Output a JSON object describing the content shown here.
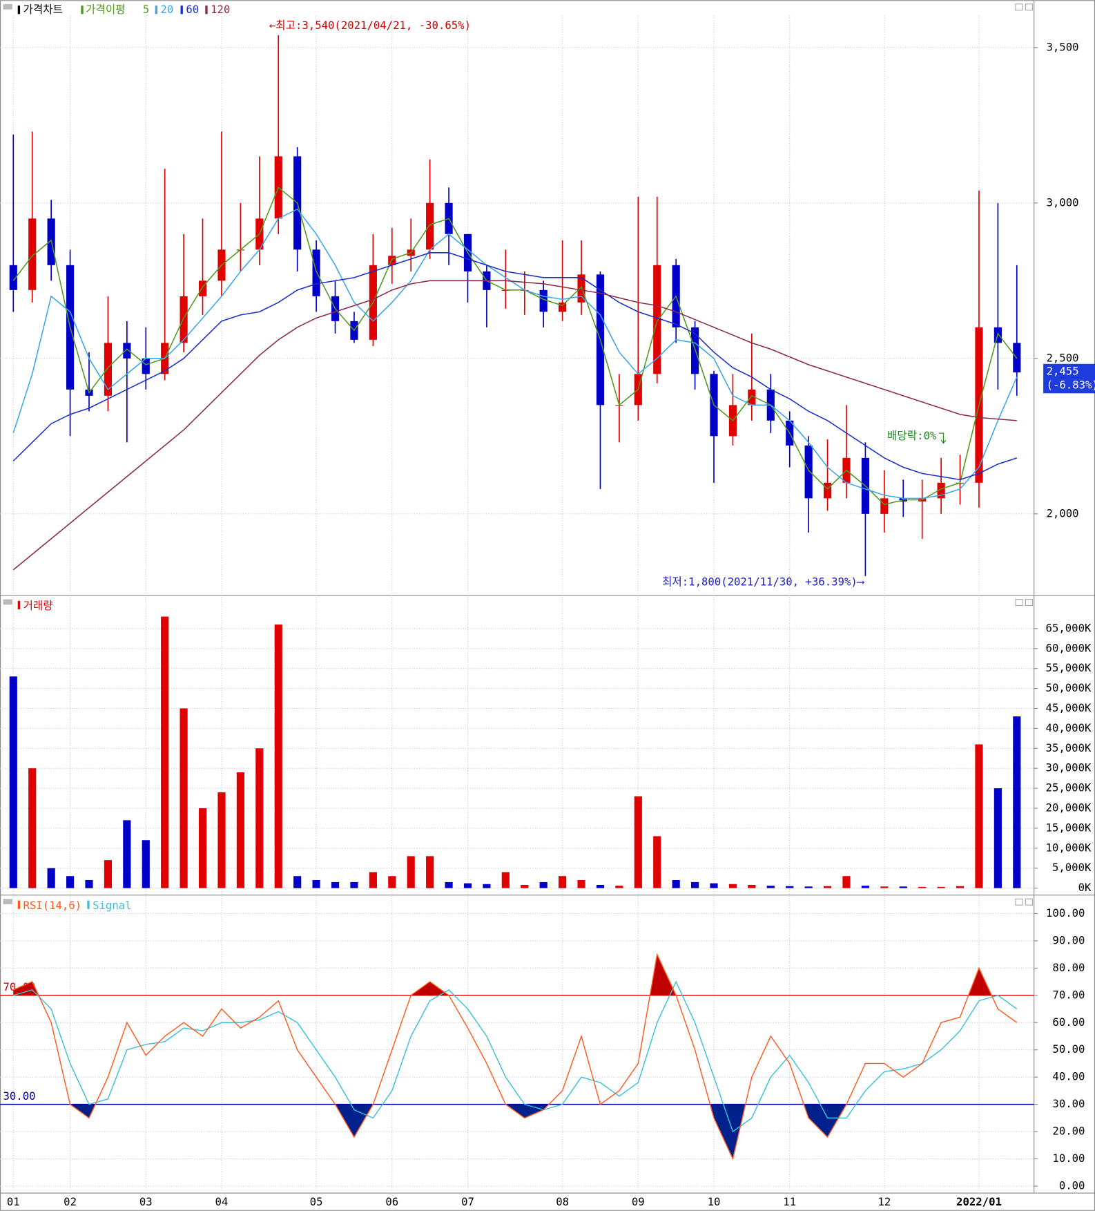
{
  "chart_data": [
    {
      "type": "candlestick",
      "title": "가격차트",
      "ma_title": "가격이평",
      "categories": [
        "01",
        null,
        null,
        "02",
        null,
        null,
        null,
        "03",
        null,
        null,
        null,
        "04",
        null,
        null,
        null,
        null,
        "05",
        null,
        null,
        null,
        "06",
        null,
        null,
        null,
        "07",
        null,
        null,
        null,
        null,
        "08",
        null,
        null,
        null,
        "09",
        null,
        null,
        null,
        "10",
        null,
        null,
        null,
        "11",
        null,
        null,
        null,
        null,
        "12",
        null,
        null,
        null,
        null,
        "2022/01",
        null,
        null
      ],
      "open": [
        2800,
        2720,
        2950,
        2800,
        2400,
        2380,
        2550,
        2500,
        2450,
        2550,
        2700,
        2750,
        2850,
        2850,
        2950,
        3150,
        2850,
        2700,
        2620,
        2560,
        2800,
        2830,
        2850,
        3000,
        2900,
        2780,
        2720,
        2720,
        2720,
        2650,
        2680,
        2770,
        2350,
        2350,
        2450,
        2800,
        2600,
        2450,
        2250,
        2350,
        2400,
        2300,
        2220,
        2050,
        2100,
        2180,
        2000,
        2050,
        2040,
        2050,
        2100,
        2100,
        2600,
        2550
      ],
      "high": [
        3220,
        3230,
        3010,
        2850,
        2520,
        2700,
        2620,
        2600,
        3110,
        2900,
        2950,
        3230,
        3000,
        3150,
        3540,
        3180,
        2880,
        2750,
        2650,
        2900,
        2920,
        2950,
        3140,
        3050,
        2900,
        2800,
        2850,
        2780,
        2750,
        2880,
        2880,
        2780,
        2450,
        3020,
        3020,
        2820,
        2620,
        2460,
        2450,
        2580,
        2450,
        2330,
        2250,
        2240,
        2350,
        2230,
        2140,
        2110,
        2110,
        2180,
        2190,
        3040,
        3000,
        2800
      ],
      "low": [
        2650,
        2680,
        2750,
        2250,
        2330,
        2330,
        2230,
        2400,
        2430,
        2520,
        2640,
        2700,
        2780,
        2800,
        2900,
        2780,
        2650,
        2580,
        2550,
        2540,
        2740,
        2780,
        2820,
        2800,
        2680,
        2600,
        2660,
        2640,
        2600,
        2620,
        2640,
        2080,
        2230,
        2300,
        2420,
        2550,
        2400,
        2100,
        2220,
        2300,
        2260,
        2150,
        1940,
        2010,
        2050,
        1800,
        1940,
        1990,
        1920,
        2000,
        2030,
        2020,
        2400,
        2380
      ],
      "close": [
        2720,
        2950,
        2800,
        2400,
        2380,
        2550,
        2500,
        2450,
        2550,
        2700,
        2750,
        2850,
        2850,
        2950,
        3150,
        2850,
        2700,
        2620,
        2560,
        2800,
        2830,
        2850,
        3000,
        2900,
        2780,
        2720,
        2720,
        2720,
        2650,
        2680,
        2770,
        2350,
        2350,
        2450,
        2800,
        2600,
        2450,
        2250,
        2350,
        2400,
        2300,
        2220,
        2050,
        2100,
        2180,
        2000,
        2050,
        2040,
        2050,
        2100,
        2100,
        2600,
        2550,
        2455
      ],
      "up_color": "#e00000",
      "down_color": "#0000c8",
      "series": [
        {
          "name": "5",
          "color": "#4f9a1e",
          "values": [
            2750,
            2830,
            2880,
            2600,
            2390,
            2470,
            2530,
            2480,
            2500,
            2630,
            2730,
            2800,
            2850,
            2900,
            3050,
            3000,
            2780,
            2660,
            2590,
            2680,
            2820,
            2840,
            2930,
            2950,
            2840,
            2750,
            2720,
            2720,
            2690,
            2670,
            2730,
            2560,
            2350,
            2400,
            2620,
            2700,
            2530,
            2350,
            2300,
            2380,
            2350,
            2260,
            2140,
            2080,
            2140,
            2090,
            2030,
            2045,
            2045,
            2080,
            2100,
            2350,
            2580,
            2500
          ]
        },
        {
          "name": "20",
          "color": "#3aa6e8",
          "values": [
            2260,
            2450,
            2700,
            2650,
            2500,
            2400,
            2450,
            2500,
            2500,
            2560,
            2630,
            2700,
            2780,
            2850,
            2950,
            2980,
            2900,
            2800,
            2680,
            2620,
            2680,
            2750,
            2850,
            2900,
            2850,
            2800,
            2760,
            2720,
            2700,
            2690,
            2700,
            2640,
            2520,
            2450,
            2500,
            2560,
            2550,
            2500,
            2380,
            2350,
            2350,
            2300,
            2230,
            2150,
            2100,
            2080,
            2060,
            2050,
            2050,
            2060,
            2080,
            2150,
            2300,
            2440
          ]
        },
        {
          "name": "60",
          "color": "#1a2fc8",
          "values": [
            2170,
            2230,
            2290,
            2320,
            2340,
            2370,
            2400,
            2430,
            2460,
            2500,
            2560,
            2620,
            2640,
            2650,
            2680,
            2720,
            2740,
            2750,
            2760,
            2780,
            2800,
            2820,
            2840,
            2840,
            2820,
            2800,
            2780,
            2770,
            2760,
            2760,
            2760,
            2720,
            2680,
            2650,
            2630,
            2610,
            2580,
            2520,
            2470,
            2440,
            2400,
            2370,
            2330,
            2300,
            2260,
            2220,
            2180,
            2150,
            2130,
            2120,
            2110,
            2130,
            2160,
            2180
          ]
        },
        {
          "name": "120",
          "color": "#8b2a4a",
          "values": [
            1820,
            1870,
            1920,
            1970,
            2020,
            2070,
            2120,
            2170,
            2220,
            2270,
            2330,
            2390,
            2450,
            2510,
            2560,
            2600,
            2630,
            2650,
            2670,
            2690,
            2720,
            2740,
            2750,
            2750,
            2750,
            2750,
            2750,
            2745,
            2740,
            2730,
            2720,
            2710,
            2695,
            2680,
            2670,
            2650,
            2625,
            2600,
            2575,
            2550,
            2530,
            2505,
            2480,
            2460,
            2440,
            2420,
            2400,
            2380,
            2360,
            2340,
            2320,
            2310,
            2305,
            2300
          ]
        }
      ],
      "ylim": [
        1740,
        3640
      ],
      "yticks": [
        {
          "value": 2000,
          "label": "2,000"
        },
        {
          "value": 2500,
          "label": "2,500"
        },
        {
          "value": 3000,
          "label": "3,000"
        },
        {
          "value": 3500,
          "label": "3,500"
        }
      ],
      "annotations": [
        "←최고:3,540(2021/04/21, -30.65%)",
        "최저:1,800(2021/11/30, +36.39%)⟶",
        "배당락:0%"
      ],
      "last_price_label": "2,455",
      "last_change_label": "(-6.83%)"
    },
    {
      "type": "bar",
      "title": "거래량",
      "values": [
        53000,
        30000,
        5000,
        3000,
        2000,
        7000,
        17000,
        12000,
        68000,
        45000,
        20000,
        24000,
        29000,
        35000,
        66000,
        3000,
        2000,
        1500,
        1500,
        4000,
        3000,
        8000,
        8000,
        1500,
        1200,
        1000,
        4000,
        800,
        1500,
        3000,
        2000,
        800,
        600,
        23000,
        13000,
        2000,
        1500,
        1200,
        1000,
        800,
        600,
        500,
        400,
        500,
        3000,
        600,
        400,
        400,
        300,
        300,
        500,
        36000,
        25000,
        43000
      ],
      "ylim": [
        0,
        70000
      ],
      "yticks": [
        {
          "value": 0,
          "label": "0K"
        },
        {
          "value": 5000,
          "label": "5,000K"
        },
        {
          "value": 10000,
          "label": "10,000K"
        },
        {
          "value": 15000,
          "label": "15,000K"
        },
        {
          "value": 20000,
          "label": "20,000K"
        },
        {
          "value": 25000,
          "label": "25,000K"
        },
        {
          "value": 30000,
          "label": "30,000K"
        },
        {
          "value": 35000,
          "label": "35,000K"
        },
        {
          "value": 40000,
          "label": "40,000K"
        },
        {
          "value": 45000,
          "label": "45,000K"
        },
        {
          "value": 50000,
          "label": "50,000K"
        },
        {
          "value": 55000,
          "label": "55,000K"
        },
        {
          "value": 60000,
          "label": "60,000K"
        },
        {
          "value": 65000,
          "label": "65,000K"
        }
      ]
    },
    {
      "type": "line",
      "series": [
        {
          "name": "RSI(14,6)",
          "color": "#ff5a1e",
          "values": [
            72,
            75,
            60,
            30,
            25,
            40,
            60,
            48,
            55,
            60,
            55,
            65,
            58,
            62,
            68,
            50,
            40,
            30,
            18,
            30,
            50,
            70,
            75,
            70,
            58,
            45,
            30,
            25,
            28,
            35,
            55,
            30,
            35,
            45,
            85,
            70,
            50,
            25,
            10,
            40,
            55,
            45,
            25,
            18,
            30,
            45,
            45,
            40,
            45,
            60,
            62,
            80,
            65,
            60
          ]
        },
        {
          "name": "Signal",
          "color": "#3cc0d8",
          "values": [
            70,
            72,
            65,
            45,
            30,
            32,
            50,
            52,
            53,
            58,
            57,
            60,
            60,
            61,
            64,
            60,
            50,
            40,
            28,
            25,
            35,
            55,
            68,
            72,
            65,
            55,
            40,
            30,
            28,
            30,
            40,
            38,
            33,
            38,
            60,
            75,
            60,
            40,
            20,
            25,
            40,
            48,
            38,
            25,
            25,
            35,
            42,
            43,
            45,
            50,
            57,
            68,
            70,
            65
          ]
        }
      ],
      "ylim": [
        0,
        100
      ],
      "yticks": [
        {
          "value": 0,
          "label": "0.00"
        },
        {
          "value": 10,
          "label": "10.00"
        },
        {
          "value": 20,
          "label": "20.00"
        },
        {
          "value": 30,
          "label": "30.00"
        },
        {
          "value": 40,
          "label": "40.00"
        },
        {
          "value": 50,
          "label": "50.00"
        },
        {
          "value": 60,
          "label": "60.00"
        },
        {
          "value": 70,
          "label": "70.00"
        },
        {
          "value": 80,
          "label": "80.00"
        },
        {
          "value": 90,
          "label": "90.00"
        },
        {
          "value": 100,
          "label": "100.00"
        }
      ],
      "reference_lines": [
        {
          "value": 70,
          "label": "70.00",
          "color": "#d00000"
        },
        {
          "value": 30,
          "label": "30.00",
          "color": "#0000a0"
        }
      ],
      "upper_fill": "#c00000",
      "lower_fill": "#00208c"
    }
  ]
}
